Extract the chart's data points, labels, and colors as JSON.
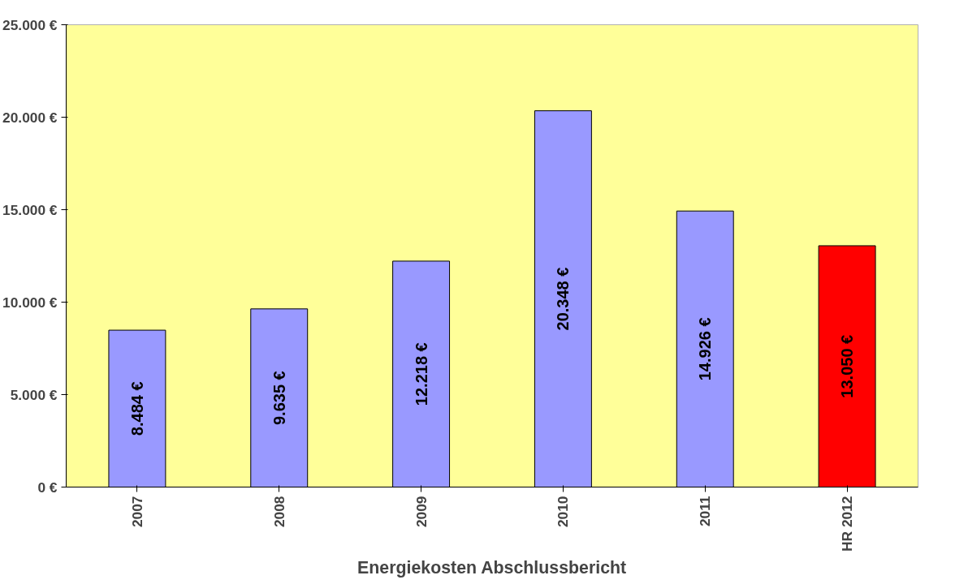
{
  "chart_data": {
    "type": "bar",
    "xlabel": "Energiekosten Abschlussbericht",
    "categories": [
      "2007",
      "2008",
      "2009",
      "2010",
      "2011",
      "HR 2012"
    ],
    "values": [
      8484,
      9635,
      12218,
      20348,
      14926,
      13050
    ],
    "colors": [
      "#9999ff",
      "#9999ff",
      "#9999ff",
      "#9999ff",
      "#9999ff",
      "#ff0000"
    ],
    "value_labels": [
      "8.484 €",
      "9.635 €",
      "12.218 €",
      "20.348 €",
      "14.926 €",
      "13.050 €"
    ],
    "ylim": [
      0,
      25000
    ],
    "yticks": [
      {
        "value": 0,
        "label": "0 €"
      },
      {
        "value": 5000,
        "label": "5.000 €"
      },
      {
        "value": 10000,
        "label": "10.000 €"
      },
      {
        "value": 15000,
        "label": "15.000 €"
      },
      {
        "value": 20000,
        "label": "20.000 €"
      },
      {
        "value": 25000,
        "label": "25.000 €"
      }
    ],
    "grid": false
  }
}
